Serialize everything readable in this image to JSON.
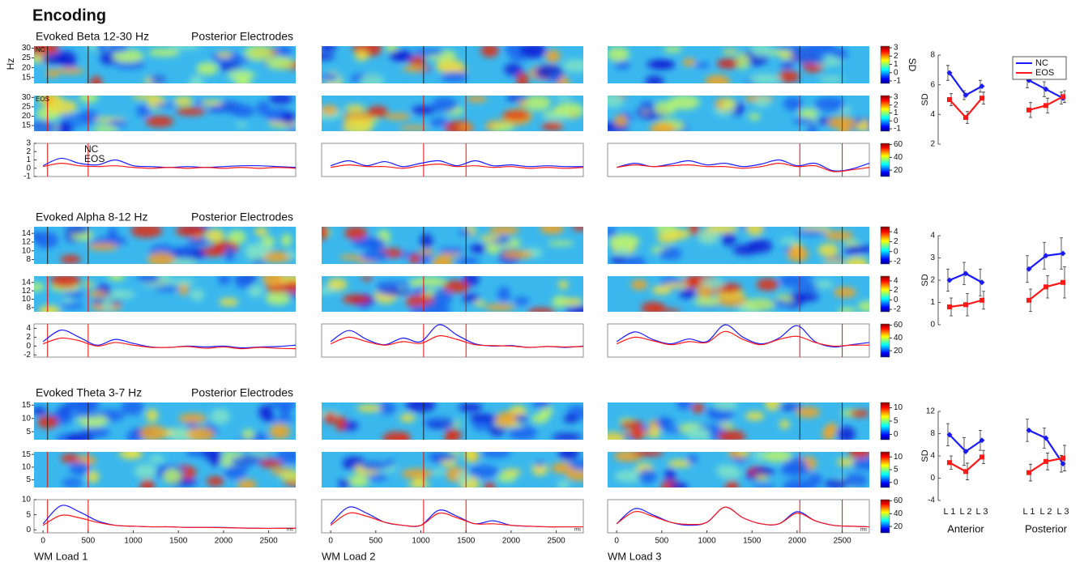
{
  "chart_data": {
    "type": "line",
    "title": "Encoding",
    "panel_labels": [
      "WM Load 1",
      "WM Load 2",
      "WM Load 3"
    ],
    "xlim": [
      -100,
      2800
    ],
    "xticks": [
      0,
      500,
      1000,
      1500,
      2000,
      2500
    ],
    "xunit": "ms",
    "x": [
      0,
      200,
      400,
      600,
      800,
      1000,
      1200,
      1400,
      1600,
      1800,
      2000,
      2200,
      2400,
      2600,
      2800
    ],
    "stimuli": [
      [
        50,
        500
      ],
      [
        1030,
        1500
      ],
      [
        2030,
        2500
      ]
    ],
    "series": [
      {
        "name": "NC",
        "color": "#1a1aff"
      },
      {
        "name": "EOS",
        "color": "#ff1a1a"
      }
    ],
    "summary_categories": [
      "L 1",
      "L 2",
      "L 3",
      "L 1",
      "L 2",
      "L 3"
    ],
    "summary_groups": [
      "Anterior",
      "Posterior"
    ],
    "bands": [
      {
        "title": "Evoked Beta 12-30 Hz",
        "subtitle": "Posterior Electrodes",
        "labels": true,
        "heatmap": {
          "ylabel": "Hz",
          "ylim": [
            12,
            31
          ],
          "yticks": [
            15,
            20,
            25,
            30
          ],
          "clabel": "SD",
          "clim": [
            -1.3,
            3.2
          ],
          "cticks": [
            -1,
            0,
            1,
            2,
            3
          ],
          "labels": true
        },
        "ylim": [
          -1,
          3
        ],
        "yticks": [
          -1,
          0,
          1,
          2,
          3
        ],
        "clim": [
          10,
          62
        ],
        "cticks": [
          20,
          40,
          60
        ],
        "loads": [
          [
            [
              0.3,
              1.2,
              0.6,
              0.4,
              1.0,
              0.3,
              0.2,
              0.1,
              0.2,
              0.1,
              0.2,
              0.3,
              0.3,
              0.2,
              0.1
            ],
            [
              0.2,
              0.6,
              0.3,
              0.2,
              0.3,
              0.1,
              0.0,
              0.1,
              0.0,
              0.1,
              0.0,
              0.1,
              0.0,
              0.1,
              0.0
            ]
          ],
          [
            [
              0.3,
              0.9,
              0.3,
              0.8,
              0.2,
              0.6,
              0.9,
              0.3,
              0.9,
              0.3,
              0.4,
              0.2,
              0.3,
              0.2,
              0.2
            ],
            [
              0.1,
              0.4,
              0.2,
              0.2,
              0.0,
              0.3,
              0.5,
              0.2,
              0.3,
              0.1,
              0.2,
              0.0,
              0.1,
              0.0,
              0.1
            ]
          ],
          [
            [
              0.1,
              0.6,
              0.2,
              0.5,
              0.9,
              0.4,
              0.6,
              0.2,
              0.5,
              1.0,
              0.3,
              0.6,
              -0.3,
              -0.1,
              0.6
            ],
            [
              0.1,
              0.4,
              0.2,
              0.3,
              0.4,
              0.2,
              0.2,
              0.0,
              0.2,
              0.6,
              0.2,
              0.3,
              -0.4,
              -0.2,
              0.1
            ]
          ]
        ],
        "summary": {
          "ylabel": "SD",
          "ylim": [
            2,
            8
          ],
          "yticks": [
            2,
            4,
            6,
            8
          ],
          "legend": "upper right",
          "values": [
            [
              6.8,
              5.3,
              5.9,
              6.3,
              5.7,
              5.1
            ],
            [
              5.0,
              3.8,
              5.1,
              4.3,
              4.6,
              5.2
            ]
          ],
          "errors": [
            [
              0.5,
              0.3,
              0.4,
              0.5,
              0.5,
              0.4
            ],
            [
              0.4,
              0.4,
              0.4,
              0.5,
              0.5,
              0.4
            ]
          ]
        }
      },
      {
        "title": "Evoked Alpha 8-12 Hz",
        "subtitle": "Posterior Electrodes",
        "heatmap": {
          "ylim": [
            7,
            15.5
          ],
          "yticks": [
            8,
            10,
            12,
            14
          ],
          "clim": [
            -2.5,
            5
          ],
          "cticks": [
            -2,
            0,
            2,
            4
          ]
        },
        "ylim": [
          -2.5,
          5
        ],
        "yticks": [
          -2,
          0,
          2,
          4
        ],
        "clim": [
          10,
          62
        ],
        "cticks": [
          20,
          40,
          60
        ],
        "loads": [
          [
            [
              1.0,
              3.6,
              2.0,
              0.2,
              1.5,
              0.6,
              -0.2,
              -0.3,
              0,
              -0.2,
              0,
              -0.4,
              -0.2,
              -0.1,
              0.2
            ],
            [
              0.5,
              1.8,
              1.2,
              0.0,
              0.8,
              0.2,
              -0.3,
              -0.3,
              -0.1,
              -0.5,
              -0.2,
              -0.6,
              -0.3,
              -0.5,
              -0.6
            ]
          ],
          [
            [
              1.0,
              3.5,
              1.5,
              0.3,
              1.8,
              1.0,
              4.8,
              2.5,
              0.5,
              0.0,
              0.1,
              -0.3,
              -0.1,
              -0.3,
              0.0
            ],
            [
              0.5,
              2.0,
              1.0,
              0.2,
              1.0,
              0.6,
              2.3,
              1.5,
              0.3,
              0.1,
              0.0,
              -0.3,
              -0.1,
              -0.2,
              -0.1
            ]
          ],
          [
            [
              1.0,
              3.2,
              1.5,
              0.5,
              1.6,
              1.0,
              4.8,
              2.0,
              0.5,
              1.8,
              4.6,
              1.0,
              -0.2,
              0.3,
              0.8
            ],
            [
              0.5,
              2.0,
              1.2,
              0.3,
              1.0,
              0.8,
              3.3,
              1.5,
              0.3,
              1.5,
              2.2,
              0.8,
              0.0,
              0.2,
              0.2
            ]
          ]
        ],
        "summary": {
          "ylabel": "SD",
          "ylim": [
            0,
            4
          ],
          "yticks": [
            0,
            1,
            2,
            3,
            4
          ],
          "values": [
            [
              2.0,
              2.3,
              1.9,
              2.5,
              3.1,
              3.2
            ],
            [
              0.8,
              0.9,
              1.1,
              1.1,
              1.7,
              1.9
            ]
          ],
          "errors": [
            [
              0.5,
              0.5,
              0.6,
              0.6,
              0.6,
              0.7
            ],
            [
              0.4,
              0.5,
              0.4,
              0.5,
              0.5,
              0.7
            ]
          ]
        }
      },
      {
        "title": "Evoked Theta 3-7 Hz",
        "subtitle": "Posterior Electrodes",
        "heatmap": {
          "ylim": [
            2,
            16
          ],
          "yticks": [
            5,
            10,
            15
          ],
          "clim": [
            -2,
            12
          ],
          "cticks": [
            0,
            5,
            10
          ]
        },
        "ylim": [
          -1,
          10
        ],
        "yticks": [
          0,
          5,
          10
        ],
        "clim": [
          10,
          62
        ],
        "cticks": [
          20,
          40,
          60
        ],
        "loads": [
          [
            [
              2.0,
              8.0,
              6.0,
              3.0,
              1.5,
              1.2,
              1.0,
              1.0,
              0.8,
              0.8,
              0.8,
              0.6,
              0.5,
              0.5,
              0.5
            ],
            [
              1.5,
              4.8,
              4.0,
              2.5,
              1.5,
              1.2,
              1.0,
              1.0,
              0.8,
              0.8,
              0.7,
              0.6,
              0.5,
              0.5,
              0.5
            ]
          ],
          [
            [
              2,
              7.5,
              5.5,
              2.5,
              1.5,
              1.5,
              6.5,
              4.5,
              2.0,
              3.0,
              1.5,
              1.2,
              1.0,
              1.0,
              1.0
            ],
            [
              1.5,
              5.5,
              4.5,
              2.5,
              1.5,
              1.5,
              5.5,
              4,
              2.0,
              2.0,
              1.5,
              1.2,
              1.0,
              1.0,
              1.0
            ]
          ],
          [
            [
              2,
              7.0,
              5,
              2.5,
              1.5,
              2.5,
              7.5,
              4,
              2,
              2,
              6,
              3,
              1.5,
              1.2,
              1.0
            ],
            [
              2,
              6,
              4.5,
              2.5,
              1.8,
              2.5,
              7.5,
              4,
              2,
              2,
              5.5,
              3,
              1.5,
              1.2,
              1.0
            ]
          ]
        ],
        "summary": {
          "ylabel": "SD",
          "ylim": [
            -4,
            12
          ],
          "yticks": [
            -4,
            0,
            4,
            8,
            12
          ],
          "values": [
            [
              7.8,
              4.8,
              6.8,
              8.6,
              7.2,
              2.6
            ],
            [
              2.8,
              1.2,
              3.8,
              1.0,
              3.0,
              3.6
            ]
          ],
          "errors": [
            [
              2.0,
              2.5,
              1.8,
              2.0,
              1.8,
              1.5
            ],
            [
              1.2,
              1.5,
              1.2,
              1.5,
              1.5,
              2.3
            ]
          ]
        }
      }
    ]
  }
}
